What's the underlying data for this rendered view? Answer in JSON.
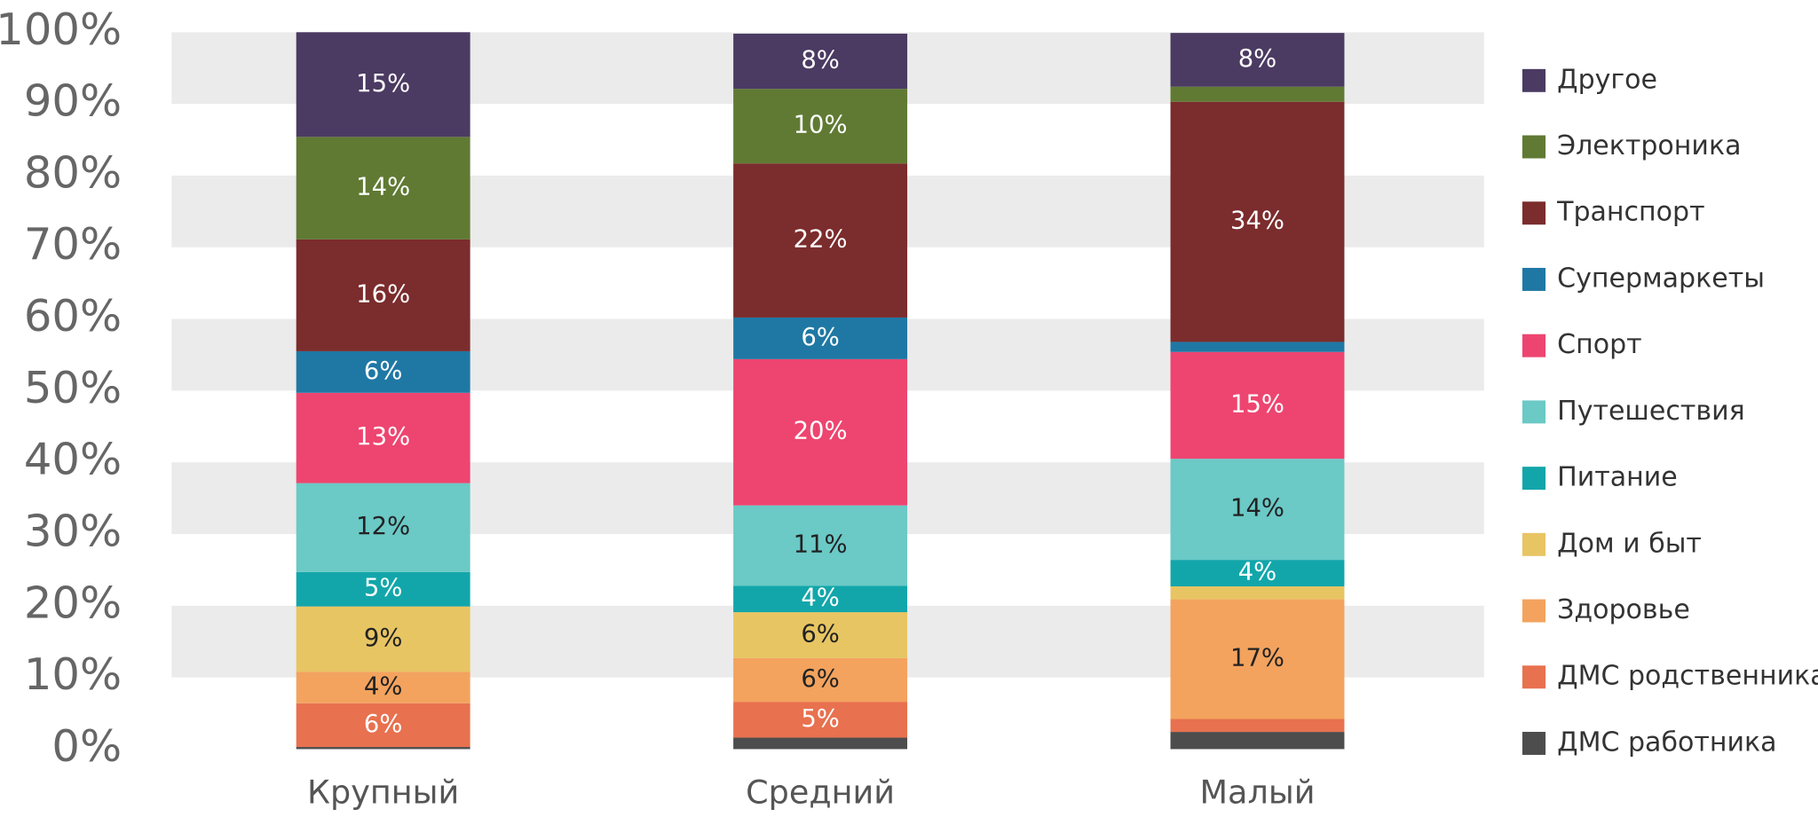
{
  "chart_data": {
    "type": "stacked_bar",
    "categories": [
      "Крупный",
      "Средний",
      "Малый"
    ],
    "ylim": [
      0,
      100
    ],
    "yticks": [
      {
        "value": 0,
        "label": "0%"
      },
      {
        "value": 10,
        "label": "10%"
      },
      {
        "value": 20,
        "label": "20%"
      },
      {
        "value": 30,
        "label": "30%"
      },
      {
        "value": 40,
        "label": "40%"
      },
      {
        "value": 50,
        "label": "50%"
      },
      {
        "value": 60,
        "label": "60%"
      },
      {
        "value": 70,
        "label": "70%"
      },
      {
        "value": 80,
        "label": "80%"
      },
      {
        "value": 90,
        "label": "90%"
      },
      {
        "value": 100,
        "label": "100%"
      }
    ],
    "grid": "bands",
    "legend": "right",
    "series": [
      {
        "name": "ДМС работника",
        "color": "#4d4d4d",
        "values": [
          0.3,
          1.6,
          2.4
        ],
        "value_labels": [
          null,
          null,
          null
        ]
      },
      {
        "name": "ДМС родственника",
        "color": "#e8714f",
        "values": [
          6.1,
          5.0,
          1.8
        ],
        "value_labels": [
          "6%",
          "5%",
          null
        ]
      },
      {
        "name": "Здоровье",
        "color": "#f3a35e",
        "values": [
          4.4,
          6.1,
          16.7
        ],
        "value_labels": [
          "4%",
          "6%",
          "17%"
        ]
      },
      {
        "name": "Дом и быт",
        "color": "#e8c563",
        "values": [
          9.1,
          6.4,
          1.8
        ],
        "value_labels": [
          "9%",
          "6%",
          null
        ]
      },
      {
        "name": "Питание",
        "color": "#12a6aa",
        "values": [
          4.8,
          3.7,
          3.7
        ],
        "value_labels": [
          "5%",
          "4%",
          "4%"
        ]
      },
      {
        "name": "Путешествия",
        "color": "#6bc9c6",
        "values": [
          12.4,
          11.2,
          14.1
        ],
        "value_labels": [
          "12%",
          "11%",
          "14%"
        ]
      },
      {
        "name": "Спорт",
        "color": "#ed4570",
        "values": [
          12.6,
          20.4,
          14.9
        ],
        "value_labels": [
          "13%",
          "20%",
          "15%"
        ]
      },
      {
        "name": "Супермаркеты",
        "color": "#1f78a4",
        "values": [
          5.8,
          5.8,
          1.4
        ],
        "value_labels": [
          "6%",
          "6%",
          null
        ]
      },
      {
        "name": "Транспорт",
        "color": "#7b2c2d",
        "values": [
          15.6,
          21.5,
          33.5
        ],
        "value_labels": [
          "16%",
          "22%",
          "34%"
        ]
      },
      {
        "name": "Электроника",
        "color": "#607a33",
        "values": [
          14.3,
          10.4,
          2.1
        ],
        "value_labels": [
          "14%",
          "10%",
          null
        ]
      },
      {
        "name": "Другое",
        "color": "#4b3a62",
        "values": [
          14.6,
          7.7,
          7.5
        ],
        "value_labels": [
          "15%",
          "8%",
          "8%"
        ]
      }
    ]
  }
}
